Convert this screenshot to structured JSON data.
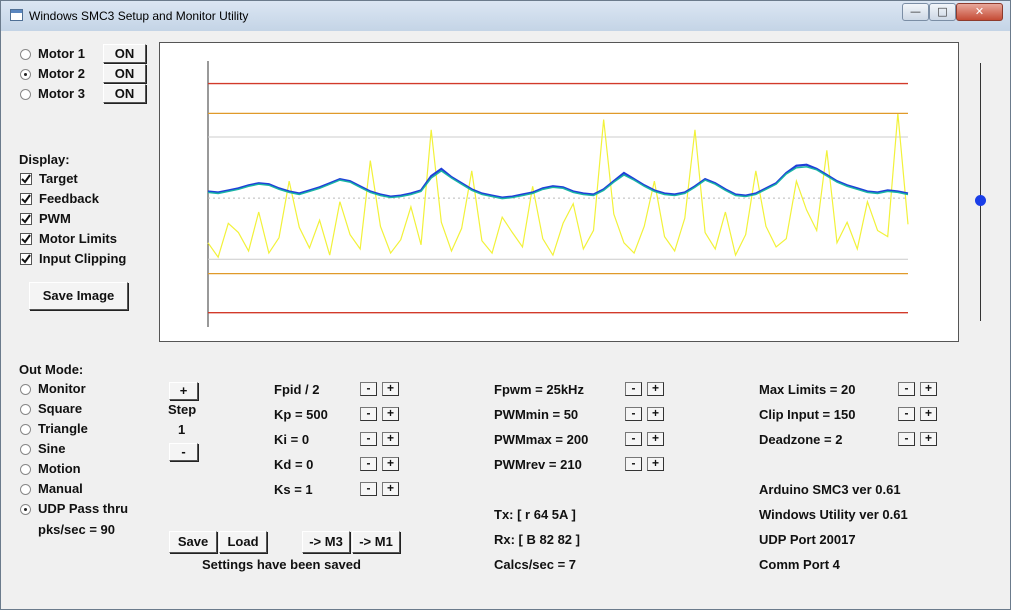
{
  "window": {
    "title": "Windows SMC3 Setup and Monitor Utility",
    "minimize_icon": "minimize-icon",
    "maximize_icon": "maximize-icon",
    "close_icon": "close-icon",
    "minimize_glyph": "—",
    "maximize_glyph": "□",
    "close_glyph": "✕"
  },
  "motors": [
    {
      "label": "Motor 1",
      "button": "ON",
      "selected": false
    },
    {
      "label": "Motor 2",
      "button": "ON",
      "selected": true
    },
    {
      "label": "Motor 3",
      "button": "ON",
      "selected": false
    }
  ],
  "display": {
    "heading": "Display:",
    "options": [
      {
        "label": "Target",
        "checked": true
      },
      {
        "label": "Feedback",
        "checked": true
      },
      {
        "label": "PWM",
        "checked": true
      },
      {
        "label": "Motor Limits",
        "checked": true
      },
      {
        "label": "Input Clipping",
        "checked": true
      }
    ],
    "save_image": "Save Image"
  },
  "out_mode": {
    "heading": "Out Mode:",
    "options": [
      {
        "label": "Monitor",
        "selected": false
      },
      {
        "label": "Square",
        "selected": false
      },
      {
        "label": "Triangle",
        "selected": false
      },
      {
        "label": "Sine",
        "selected": false
      },
      {
        "label": "Motion",
        "selected": false
      },
      {
        "label": "Manual",
        "selected": false
      },
      {
        "label": "UDP Pass thru",
        "selected": true
      }
    ],
    "pks": "pks/sec = 90"
  },
  "step": {
    "plus": "+",
    "label": "Step",
    "value": "1",
    "minus": "-"
  },
  "pid_params": [
    "Fpid / 2",
    "Kp = 500",
    "Ki = 0",
    "Kd = 0",
    "Ks = 1"
  ],
  "pwm_params": [
    "Fpwm = 25kHz",
    "PWMmin = 50",
    "PWMmax = 200",
    "PWMrev = 210"
  ],
  "limit_params": [
    "Max Limits = 20",
    "Clip Input = 150",
    "Deadzone = 2"
  ],
  "adjust": {
    "minus": "-",
    "plus": "+"
  },
  "comms": {
    "tx": "Tx: [ r 64 5A ]",
    "rx": "Rx: [ B 82 82 ]",
    "calcs": "Calcs/sec = 7"
  },
  "info": [
    "Arduino SMC3 ver 0.61",
    "Windows Utility ver 0.61",
    "UDP Port 20017",
    "Comm Port 4"
  ],
  "buttons": {
    "save": "Save",
    "load": "Load",
    "to_m3": "-> M3",
    "to_m1": "-> M1"
  },
  "status": "Settings have been saved",
  "slider": {
    "value": 0.47
  },
  "colors": {
    "target": "#1f3fd8",
    "feedback": "#19b5a4",
    "pwm": "#f2f23a",
    "motor_limit": "#d23a2a",
    "clip_limit": "#e09a2a",
    "dead_line": "#cccccc",
    "slider_thumb": "#1a3ee8"
  },
  "chart_data": {
    "type": "line",
    "title": "",
    "xlabel": "",
    "ylabel": "",
    "ylim": [
      0,
      255
    ],
    "x_count": 70,
    "limits": {
      "motor_upper": 235,
      "motor_lower": 12,
      "clip_upper": 206,
      "clip_lower": 50,
      "dead_upper": 183,
      "dead_lower": 64
    },
    "series": [
      {
        "key": "target",
        "values": [
          130,
          129,
          131,
          133,
          136,
          138,
          137,
          133,
          130,
          128,
          131,
          134,
          138,
          142,
          140,
          135,
          130,
          127,
          125,
          126,
          128,
          131,
          145,
          152,
          144,
          138,
          132,
          128,
          126,
          124,
          125,
          127,
          129,
          133,
          135,
          134,
          130,
          128,
          127,
          132,
          140,
          148,
          142,
          136,
          131,
          128,
          127,
          129,
          135,
          142,
          138,
          132,
          127,
          126,
          128,
          133,
          138,
          148,
          155,
          156,
          152,
          146,
          140,
          136,
          133,
          130,
          129,
          131,
          130,
          128
        ]
      },
      {
        "key": "feedback",
        "values": [
          129,
          128,
          130,
          132,
          135,
          137,
          136,
          132,
          129,
          127,
          130,
          133,
          137,
          141,
          139,
          134,
          129,
          126,
          124,
          125,
          127,
          130,
          143,
          150,
          143,
          137,
          131,
          127,
          125,
          123,
          124,
          126,
          128,
          132,
          134,
          133,
          129,
          127,
          126,
          131,
          139,
          146,
          141,
          135,
          130,
          127,
          126,
          128,
          134,
          141,
          137,
          131,
          126,
          125,
          127,
          132,
          137,
          147,
          153,
          154,
          151,
          145,
          139,
          135,
          132,
          129,
          128,
          130,
          129,
          127
        ]
      },
      {
        "key": "pwm",
        "values": [
          80,
          66,
          99,
          90,
          72,
          110,
          70,
          85,
          140,
          95,
          75,
          102,
          68,
          120,
          88,
          74,
          160,
          96,
          70,
          83,
          115,
          78,
          190,
          100,
          72,
          94,
          150,
          82,
          70,
          105,
          90,
          76,
          135,
          84,
          68,
          99,
          118,
          74,
          92,
          200,
          108,
          80,
          70,
          96,
          140,
          86,
          72,
          104,
          190,
          90,
          74,
          110,
          68,
          88,
          150,
          96,
          76,
          84,
          140,
          112,
          92,
          170,
          80,
          100,
          74,
          120,
          92,
          86,
          206,
          98
        ]
      }
    ]
  }
}
